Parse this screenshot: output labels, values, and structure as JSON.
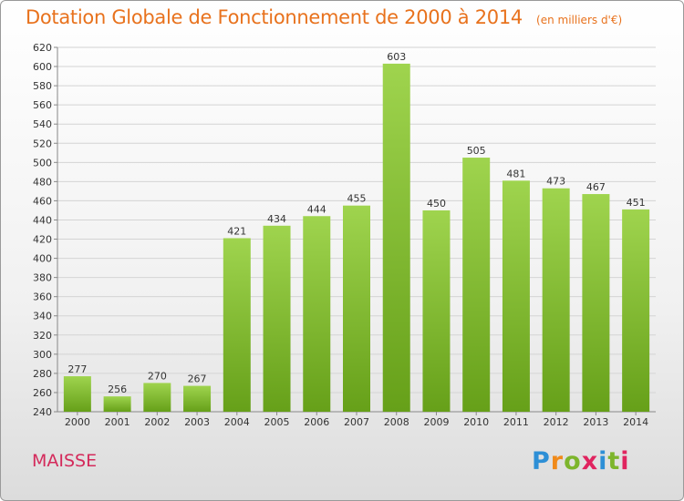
{
  "title": "Dotation Globale de Fonctionnement de 2000 à 2014",
  "unit_note": "(en milliers d'€)",
  "commune": "MAISSE",
  "logo_text": "Proxiti",
  "colors": {
    "title": "#e8721d",
    "commune": "#d42a5b",
    "bar_top": "#9fd44e",
    "bar_bottom": "#66a019"
  },
  "chart_data": {
    "type": "bar",
    "title": "Dotation Globale de Fonctionnement de 2000 à 2014",
    "categories": [
      "2000",
      "2001",
      "2002",
      "2003",
      "2004",
      "2005",
      "2006",
      "2007",
      "2008",
      "2009",
      "2010",
      "2011",
      "2012",
      "2013",
      "2014"
    ],
    "values": [
      277,
      256,
      270,
      267,
      421,
      434,
      444,
      455,
      603,
      450,
      505,
      481,
      473,
      467,
      451
    ],
    "ylim": [
      240,
      620
    ],
    "yticks": [
      240,
      260,
      280,
      300,
      320,
      340,
      360,
      380,
      400,
      420,
      440,
      460,
      480,
      500,
      520,
      540,
      560,
      580,
      600,
      620
    ],
    "grid": true
  }
}
